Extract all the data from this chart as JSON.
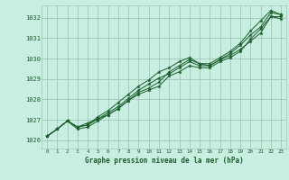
{
  "xlabel": "Graphe pression niveau de la mer (hPa)",
  "ylim": [
    1025.6,
    1032.6
  ],
  "xlim": [
    -0.5,
    23.5
  ],
  "yticks": [
    1026,
    1027,
    1028,
    1029,
    1030,
    1031,
    1032
  ],
  "xticks": [
    0,
    1,
    2,
    3,
    4,
    5,
    6,
    7,
    8,
    9,
    10,
    11,
    12,
    13,
    14,
    15,
    16,
    17,
    18,
    19,
    20,
    21,
    22,
    23
  ],
  "bg_color": "#c8eee2",
  "grid_color": "#a0c8b8",
  "line_color": "#1a5c2a",
  "lines": [
    [
      1026.2,
      1026.55,
      1026.95,
      1026.65,
      1026.75,
      1027.05,
      1027.35,
      1027.65,
      1028.05,
      1028.45,
      1028.75,
      1029.05,
      1029.25,
      1029.55,
      1029.85,
      1029.65,
      1029.65,
      1029.95,
      1030.25,
      1030.65,
      1031.15,
      1031.55,
      1032.25,
      1032.15
    ],
    [
      1026.2,
      1026.55,
      1026.95,
      1026.65,
      1026.85,
      1027.05,
      1027.25,
      1027.55,
      1027.95,
      1028.35,
      1028.55,
      1028.85,
      1029.35,
      1029.65,
      1029.95,
      1029.75,
      1029.75,
      1030.05,
      1030.35,
      1030.75,
      1031.35,
      1031.85,
      1032.35,
      1032.15
    ],
    [
      1026.2,
      1026.55,
      1026.95,
      1026.65,
      1026.75,
      1027.15,
      1027.45,
      1027.85,
      1028.25,
      1028.65,
      1028.95,
      1029.35,
      1029.55,
      1029.85,
      1030.05,
      1029.75,
      1029.65,
      1029.95,
      1030.15,
      1030.45,
      1030.85,
      1031.25,
      1032.05,
      1031.95
    ],
    [
      1026.2,
      1026.55,
      1026.95,
      1026.55,
      1026.65,
      1026.95,
      1027.25,
      1027.55,
      1027.95,
      1028.25,
      1028.45,
      1028.65,
      1029.15,
      1029.35,
      1029.65,
      1029.55,
      1029.55,
      1029.85,
      1030.05,
      1030.35,
      1030.95,
      1031.45,
      1032.05,
      1032.05
    ]
  ]
}
